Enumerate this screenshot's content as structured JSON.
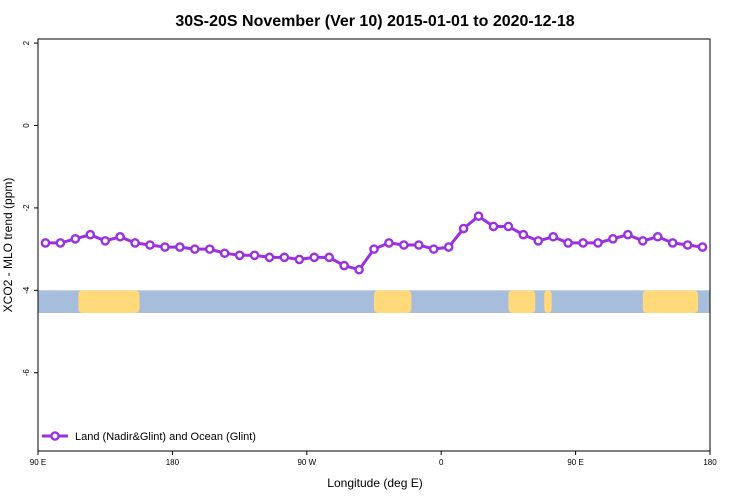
{
  "chart_data": {
    "type": "line",
    "title": "30S-20S November (Ver 10)   2015-01-01 to 2020-12-18",
    "xlabel": "Longitude (deg E)",
    "ylabel": "XCO2 - MLO trend (ppm)",
    "x_tick_labels": [
      "90 E",
      "180",
      "90 W",
      "0",
      "90 E",
      "180"
    ],
    "y_tick_labels": [
      "2",
      "0",
      "-2",
      "-4",
      "-6"
    ],
    "y_ticks": [
      2,
      0,
      -2,
      -4,
      -6
    ],
    "ylim": [
      -7.9,
      2.1
    ],
    "legend": {
      "label": "Land (Nadir&Glint) and Ocean (Glint)",
      "position": "bottom-left"
    },
    "series": [
      {
        "name": "Land (Nadir&Glint) and Ocean (Glint)",
        "color": "#9b30e0",
        "x": [
          95,
          105,
          115,
          125,
          135,
          145,
          155,
          165,
          175,
          185,
          195,
          205,
          215,
          225,
          235,
          245,
          255,
          265,
          275,
          285,
          295,
          305,
          315,
          325,
          335,
          345,
          355,
          365,
          375,
          385,
          395,
          405,
          415,
          425,
          435,
          445,
          455,
          465,
          475,
          485,
          495,
          505,
          515,
          525,
          535
        ],
        "values": [
          -2.85,
          -2.85,
          -2.75,
          -2.65,
          -2.8,
          -2.7,
          -2.85,
          -2.9,
          -2.95,
          -2.95,
          -3.0,
          -3.0,
          -3.1,
          -3.15,
          -3.15,
          -3.2,
          -3.2,
          -3.25,
          -3.2,
          -3.2,
          -3.4,
          -3.5,
          -3.0,
          -2.85,
          -2.9,
          -2.9,
          -3.0,
          -2.95,
          -2.5,
          -2.2,
          -2.45,
          -2.45,
          -2.65,
          -2.8,
          -2.7,
          -2.85,
          -2.85,
          -2.85,
          -2.75,
          -2.65,
          -2.8,
          -2.7,
          -2.85,
          -2.9,
          -2.95
        ]
      }
    ],
    "map_strip": {
      "ocean_color": "#a6bddb",
      "land_color": "#ffd97a",
      "y_range": [
        -4.0,
        -4.55
      ],
      "land_segments": [
        [
          117,
          158
        ],
        [
          315,
          340
        ],
        [
          405,
          423
        ],
        [
          429,
          434
        ],
        [
          495,
          532
        ]
      ]
    }
  }
}
